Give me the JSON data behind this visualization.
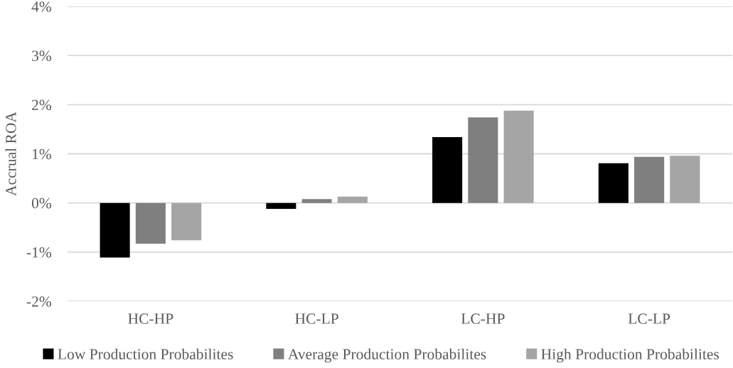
{
  "chart_data": {
    "type": "bar",
    "ylabel": "Accrual ROA",
    "categories": [
      "HC-HP",
      "HC-LP",
      "LC-HP",
      "LC-LP"
    ],
    "series": [
      {
        "name": "Low Production Probabilites",
        "color": "#000000",
        "values": [
          -1.11,
          -0.12,
          1.34,
          0.81
        ]
      },
      {
        "name": "Average Production Probabilites",
        "color": "#7f7f7f",
        "values": [
          -0.83,
          0.08,
          1.74,
          0.94
        ]
      },
      {
        "name": "High Production Probabilites",
        "color": "#a5a5a5",
        "values": [
          -0.76,
          0.13,
          1.88,
          0.96
        ]
      }
    ],
    "ylim": [
      -2,
      4
    ],
    "yticks": [
      {
        "value": -2,
        "label": "-2%"
      },
      {
        "value": -1,
        "label": "-1%"
      },
      {
        "value": 0,
        "label": "0%"
      },
      {
        "value": 1,
        "label": "1%"
      },
      {
        "value": 2,
        "label": "2%"
      },
      {
        "value": 3,
        "label": "3%"
      },
      {
        "value": 4,
        "label": "4%"
      }
    ],
    "grid": "y",
    "legend": "bottom"
  }
}
